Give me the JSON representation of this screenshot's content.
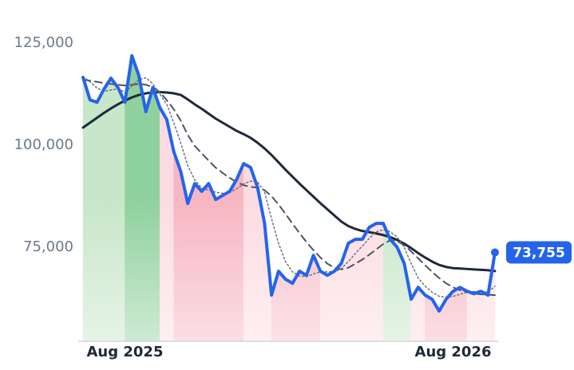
{
  "chart_data": {
    "type": "line",
    "categories": [
      null,
      null,
      null,
      null,
      null,
      null,
      "Aug 2025",
      null,
      null,
      null,
      null,
      null,
      null,
      null,
      null,
      null,
      null,
      null,
      null,
      null,
      null,
      null,
      null,
      null,
      null,
      null,
      null,
      null,
      null,
      null,
      null,
      null,
      null,
      null,
      null,
      null,
      null,
      null,
      null,
      null,
      null,
      null,
      null,
      null,
      null,
      null,
      null,
      null,
      null,
      null,
      null,
      null,
      null,
      "Aug 2026",
      null,
      null,
      null,
      null,
      null,
      null
    ],
    "series": [
      {
        "color": "#1e293b",
        "dash": "solid",
        "width": 3,
        "values": [
          104300,
          105500,
          106700,
          107900,
          109000,
          110000,
          110900,
          111700,
          112300,
          112700,
          112900,
          113000,
          112900,
          112700,
          112300,
          111200,
          110000,
          108900,
          107700,
          106500,
          105500,
          104500,
          103500,
          102700,
          101800,
          100600,
          99200,
          97600,
          95800,
          94000,
          92300,
          90600,
          89000,
          87400,
          85800,
          84300,
          82800,
          81300,
          80200,
          79500,
          79000,
          78700,
          78400,
          78000,
          77500,
          76800,
          75900,
          74800,
          73600,
          72500,
          71500,
          70700,
          70200,
          69900,
          69800,
          69700,
          69600,
          69500,
          69400,
          69200
        ]
      },
      {
        "color": "#4b5563",
        "dash": "dashed",
        "width": 2,
        "values": [
          116000,
          115800,
          115500,
          115200,
          115000,
          114800,
          114600,
          114800,
          115000,
          114800,
          114200,
          113000,
          111000,
          108800,
          106000,
          102500,
          99800,
          98000,
          96200,
          94500,
          93200,
          92000,
          91000,
          90200,
          89800,
          89600,
          89000,
          87500,
          85500,
          83200,
          80800,
          78500,
          76300,
          74300,
          72500,
          71000,
          70000,
          69600,
          70000,
          71000,
          72000,
          73200,
          74500,
          75800,
          76700,
          76500,
          75500,
          74000,
          72300,
          70600,
          69000,
          67500,
          66200,
          65200,
          64500,
          64000,
          63700,
          63500,
          63400,
          63300
        ]
      },
      {
        "color": "#6b7280",
        "dash": "dotted",
        "width": 1.5,
        "values": [
          116800,
          115500,
          114000,
          113200,
          113500,
          113800,
          113000,
          114500,
          116000,
          116500,
          115000,
          112500,
          110000,
          105500,
          100500,
          95000,
          91500,
          89500,
          89000,
          88500,
          88200,
          88400,
          89300,
          90500,
          91200,
          91000,
          88500,
          82000,
          76000,
          71500,
          69000,
          68000,
          67800,
          68500,
          69000,
          69000,
          69000,
          69800,
          71500,
          73500,
          75300,
          77200,
          78800,
          79300,
          78800,
          77500,
          75000,
          71000,
          67500,
          65500,
          64000,
          63000,
          62800,
          63000,
          63500,
          64000,
          64200,
          64200,
          64000,
          65500
        ]
      },
      {
        "color": "#2563eb",
        "dash": "solid",
        "width": 4,
        "values": [
          116600,
          111100,
          110500,
          113700,
          116400,
          114100,
          110500,
          121900,
          117000,
          108200,
          114100,
          109200,
          106250,
          98400,
          93550,
          85750,
          90600,
          88700,
          90600,
          86700,
          87700,
          88700,
          91600,
          95500,
          94550,
          89650,
          80850,
          63300,
          69150,
          67200,
          66200,
          69150,
          68150,
          73050,
          69150,
          68150,
          69150,
          71100,
          76000,
          76950,
          76950,
          79900,
          80850,
          80850,
          76950,
          75000,
          71100,
          62300,
          65200,
          63300,
          62300,
          59400,
          62300,
          64250,
          65200,
          64250,
          63650,
          64250,
          63300,
          73755
        ],
        "value_labels": [
          null,
          null,
          null,
          null,
          null,
          null,
          null,
          null,
          null,
          null,
          null,
          null,
          null,
          null,
          null,
          null,
          null,
          null,
          null,
          null,
          null,
          null,
          null,
          null,
          null,
          null,
          null,
          null,
          null,
          null,
          null,
          null,
          null,
          null,
          null,
          null,
          null,
          null,
          null,
          null,
          null,
          null,
          null,
          null,
          null,
          null,
          null,
          null,
          null,
          null,
          null,
          null,
          null,
          null,
          null,
          null,
          null,
          null,
          null,
          "73,755"
        ],
        "fill_colors": [
          "#c8e6c9",
          "#c8e6c9",
          "#c8e6c9",
          "#c8e6c9",
          "#c8e6c9",
          "#c8e6c9",
          "#8fd19e",
          "#8fd19e",
          "#8fd19e",
          "#8fd19e",
          "#8fd19e",
          "#fcdce2",
          "#fcdce2",
          "#f7b6c2",
          "#f7b6c2",
          "#f7b6c2",
          "#f7b6c2",
          "#f7b6c2",
          "#f7b6c2",
          "#f7b6c2",
          "#f7b6c2",
          "#f7b6c2",
          "#f7b6c2",
          "#fcdce2",
          "#fcdce2",
          "#fcdce2",
          "#fcdce2",
          "#f7bfca",
          "#f7bfca",
          "#f7bfca",
          "#f7bfca",
          "#f7bfca",
          "#f7bfca",
          "#f7bfca",
          "#fcdce2",
          "#fcdce2",
          "#fcdce2",
          "#fcdce2",
          "#fcdce2",
          "#fcdce2",
          "#fcdce2",
          "#fcdce2",
          "#fcdce2",
          "#c8e6c9",
          "#c8e6c9",
          "#c8e6c9",
          "#c8e6c9",
          "#fcdce2",
          "#fcdce2",
          "#f7b6c2",
          "#f7b6c2",
          "#f7b6c2",
          "#f7b6c2",
          "#f7b6c2",
          "#f7b6c2",
          "#fcdce2",
          "#fcdce2",
          "#fcdce2",
          "#fcdce2",
          "#fcdce2"
        ]
      }
    ],
    "ylim": [
      52000,
      128000
    ],
    "yticks": [
      {
        "value": 75000,
        "label": "75,000"
      },
      {
        "value": 100000,
        "label": "100,000"
      },
      {
        "value": 125000,
        "label": "125,000"
      }
    ],
    "grid": false
  }
}
